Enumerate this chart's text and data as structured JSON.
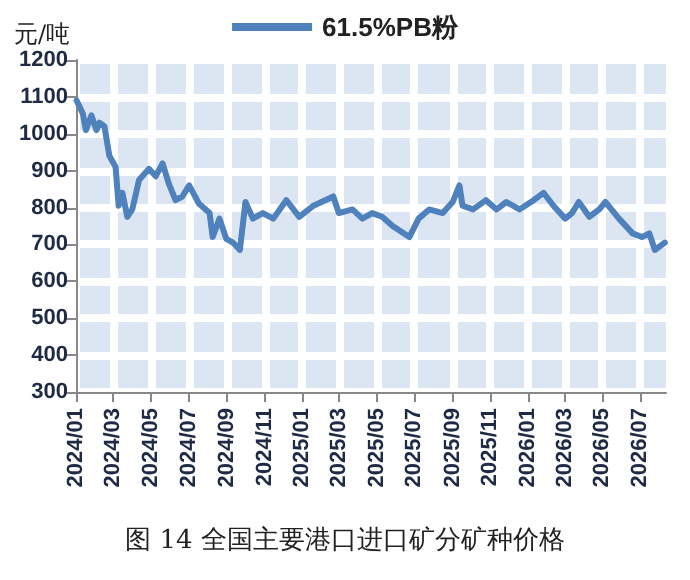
{
  "chart_data": {
    "type": "line",
    "title": "图 14 全国主要港口进口矿分矿种价格",
    "ylabel": "元/吨",
    "legend": "top",
    "grid": true,
    "marker": "none",
    "line_style": "solid",
    "ylim": [
      300,
      1200
    ],
    "yticks": [
      300,
      400,
      500,
      600,
      700,
      800,
      900,
      1000,
      1100,
      1200
    ],
    "xlim": [
      "2024-01-01",
      "2026-08-12"
    ],
    "xticks": [
      {
        "value": "2024-01",
        "label": "2024/01"
      },
      {
        "value": "2024-03",
        "label": "2024/03"
      },
      {
        "value": "2024-05",
        "label": "2024/05"
      },
      {
        "value": "2024-07",
        "label": "2024/07"
      },
      {
        "value": "2024-09",
        "label": "2024/09"
      },
      {
        "value": "2024-11",
        "label": "2024/11"
      },
      {
        "value": "2025-01",
        "label": "2025/01"
      },
      {
        "value": "2025-03",
        "label": "2025/03"
      },
      {
        "value": "2025-05",
        "label": "2025/05"
      },
      {
        "value": "2025-07",
        "label": "2025/07"
      },
      {
        "value": "2025-09",
        "label": "2025/09"
      },
      {
        "value": "2025-11",
        "label": "2025/11"
      },
      {
        "value": "2026-01",
        "label": "2026/01"
      },
      {
        "value": "2026-03",
        "label": "2026/03"
      },
      {
        "value": "2026-05",
        "label": "2026/05"
      },
      {
        "value": "2026-07",
        "label": "2026/07"
      }
    ],
    "x": [
      "2024-01-02",
      "2024-01-12",
      "2024-01-17",
      "2024-01-26",
      "2024-02-03",
      "2024-02-08",
      "2024-02-16",
      "2024-02-24",
      "2024-03-05",
      "2024-03-10",
      "2024-03-16",
      "2024-03-24",
      "2024-04-01",
      "2024-04-12",
      "2024-04-28",
      "2024-05-09",
      "2024-05-20",
      "2024-05-30",
      "2024-06-10",
      "2024-06-21",
      "2024-07-02",
      "2024-07-18",
      "2024-08-04",
      "2024-08-09",
      "2024-08-20",
      "2024-08-31",
      "2024-09-11",
      "2024-09-22",
      "2024-10-01",
      "2024-10-13",
      "2024-10-29",
      "2024-11-15",
      "2024-12-06",
      "2024-12-27",
      "2025-01-19",
      "2025-02-20",
      "2025-03-01",
      "2025-03-23",
      "2025-04-08",
      "2025-04-24",
      "2025-05-10",
      "2025-05-27",
      "2025-06-23",
      "2025-07-08",
      "2025-07-25",
      "2025-08-16",
      "2025-09-01",
      "2025-09-12",
      "2025-09-17",
      "2025-10-04",
      "2025-10-25",
      "2025-11-11",
      "2025-11-27",
      "2025-12-18",
      "2026-01-10",
      "2026-01-26",
      "2026-02-11",
      "2026-03-02",
      "2026-03-13",
      "2026-03-24",
      "2026-04-10",
      "2026-04-26",
      "2026-05-06",
      "2026-05-28",
      "2026-06-19",
      "2026-07-04",
      "2026-07-16",
      "2026-07-25",
      "2026-08-10"
    ],
    "series": [
      {
        "name": "61.5%PB粉",
        "color": "#4f81bd",
        "values": [
          1090,
          1055,
          1010,
          1050,
          1010,
          1030,
          1020,
          940,
          910,
          805,
          840,
          775,
          795,
          875,
          905,
          885,
          920,
          865,
          820,
          830,
          860,
          810,
          785,
          720,
          770,
          715,
          705,
          685,
          815,
          770,
          785,
          770,
          820,
          775,
          805,
          830,
          785,
          795,
          770,
          785,
          775,
          750,
          720,
          770,
          795,
          785,
          815,
          860,
          805,
          795,
          820,
          795,
          815,
          795,
          820,
          840,
          805,
          770,
          785,
          815,
          775,
          795,
          815,
          770,
          730,
          720,
          730,
          685,
          705
        ]
      }
    ]
  }
}
